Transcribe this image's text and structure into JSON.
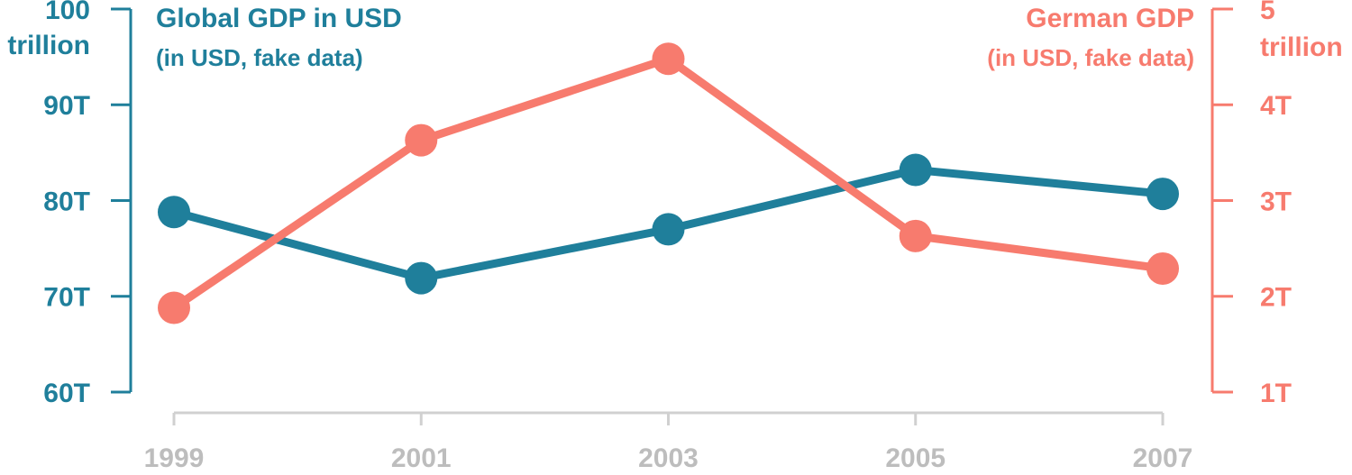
{
  "chart_data": {
    "type": "line",
    "x": [
      1999,
      2001,
      2003,
      2005,
      2007
    ],
    "xlim": [
      1999,
      2007
    ],
    "xticks": [
      1999,
      2001,
      2003,
      2005,
      2007
    ],
    "ylim": [
      60,
      100
    ],
    "yticks": [
      {
        "value": 60,
        "label": "60T"
      },
      {
        "value": 70,
        "label": "70T"
      },
      {
        "value": 80,
        "label": "80T"
      },
      {
        "value": 90,
        "label": "90T"
      },
      100
    ],
    "y_unit": "trillion",
    "y_label": "(in USD, fake data)",
    "y2lim": [
      1,
      5
    ],
    "y2ticks": [
      {
        "value": 1,
        "label": "1T"
      },
      {
        "value": 2,
        "label": "2T"
      },
      {
        "value": 3,
        "label": "3T"
      },
      {
        "value": 4,
        "label": "4T"
      },
      5
    ],
    "y2_unit": "trillion",
    "y2_label": "(in USD, fake data)",
    "series": [
      {
        "name": "Global GDP in USD",
        "color": "#1f7f9b",
        "values": [
          78.8,
          71.9,
          77.0,
          83.2,
          80.7
        ]
      },
      {
        "name": "German GDP",
        "color": "#f77b6e",
        "axis": "y2",
        "values": [
          1.88,
          3.63,
          4.48,
          2.63,
          2.29
        ]
      }
    ]
  }
}
